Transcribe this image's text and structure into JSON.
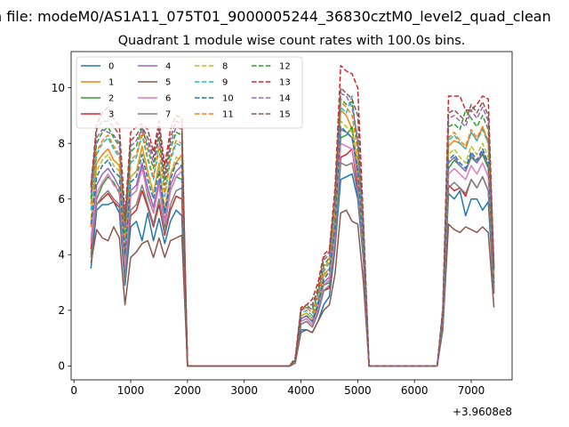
{
  "chart_data": {
    "type": "line",
    "suptitle": "n file: modeM0/AS1A11_075T01_9000005244_36830cztM0_level2_quad_clean",
    "title": "Quadrant 1 module wise count rates with 100.0s bins.",
    "xlabel": "",
    "ylabel": "",
    "x_offset_label": "+3.9608e8",
    "xlim": [
      -50,
      7720
    ],
    "ylim": [
      -0.5,
      11.3
    ],
    "xticks": [
      0,
      1000,
      2000,
      3000,
      4000,
      5000,
      6000,
      7000
    ],
    "yticks": [
      0,
      2,
      4,
      6,
      8,
      10
    ],
    "grid": false,
    "legend_position": "top-left",
    "x": [
      300,
      400,
      500,
      600,
      700,
      800,
      900,
      1000,
      1100,
      1200,
      1300,
      1400,
      1500,
      1600,
      1700,
      1800,
      1900,
      2000,
      2100,
      2200,
      2300,
      2400,
      2500,
      2600,
      2700,
      2800,
      2900,
      3000,
      3100,
      3200,
      3300,
      3400,
      3500,
      3600,
      3700,
      3800,
      3900,
      4000,
      4100,
      4200,
      4300,
      4400,
      4500,
      4600,
      4700,
      4800,
      4900,
      5000,
      5100,
      5200,
      5300,
      5400,
      5500,
      5600,
      5700,
      5800,
      5900,
      6000,
      6100,
      6200,
      6300,
      6400,
      6500,
      6600,
      6700,
      6800,
      6900,
      7000,
      7100,
      7200,
      7300,
      7400
    ],
    "series": [
      {
        "name": "0",
        "color": "#1f77b4",
        "dash": "solid",
        "values": [
          3.5,
          5.6,
          5.8,
          5.8,
          5.9,
          5.5,
          2.9,
          5.0,
          5.2,
          4.5,
          5.5,
          4.5,
          5.3,
          4.4,
          5.2,
          5.6,
          5.4,
          0,
          0,
          0,
          0,
          0,
          0,
          0,
          0,
          0,
          0,
          0,
          0,
          0,
          0,
          0,
          0,
          0,
          0,
          0,
          0.1,
          1.3,
          1.3,
          1.2,
          1.6,
          2.2,
          2.5,
          4.2,
          6.7,
          6.8,
          6.9,
          6.0,
          3.8,
          0,
          0,
          0,
          0,
          0,
          0,
          0,
          0,
          0,
          0,
          0,
          0,
          0,
          1.5,
          6.2,
          6.0,
          6.3,
          5.4,
          6.0,
          6.0,
          5.6,
          5.9,
          2.6
        ]
      },
      {
        "name": "1",
        "color": "#ff7f0e",
        "dash": "solid",
        "values": [
          5.0,
          7.3,
          7.6,
          7.8,
          7.4,
          7.2,
          3.8,
          6.8,
          7.0,
          7.9,
          7.0,
          6.2,
          7.3,
          5.5,
          6.9,
          7.3,
          7.6,
          0,
          0,
          0,
          0,
          0,
          0,
          0,
          0,
          0,
          0,
          0,
          0,
          0,
          0,
          0,
          0,
          0,
          0,
          0,
          0.2,
          1.8,
          1.9,
          1.7,
          2.3,
          3.3,
          3.5,
          5.2,
          9.2,
          9.0,
          8.5,
          7.3,
          4.5,
          0,
          0,
          0,
          0,
          0,
          0,
          0,
          0,
          0,
          0,
          0,
          0,
          0,
          1.8,
          7.9,
          8.1,
          8.0,
          7.8,
          8.4,
          8.1,
          8.6,
          8.0,
          3.2
        ]
      },
      {
        "name": "2",
        "color": "#2ca02c",
        "dash": "solid",
        "values": [
          4.0,
          6.0,
          6.5,
          6.8,
          6.6,
          6.2,
          3.3,
          6.1,
          6.3,
          7.2,
          6.1,
          5.5,
          6.5,
          5.0,
          6.3,
          6.8,
          6.7,
          0,
          0,
          0,
          0,
          0,
          0,
          0,
          0,
          0,
          0,
          0,
          0,
          0,
          0,
          0,
          0,
          0,
          0,
          0,
          0.1,
          1.6,
          1.7,
          1.5,
          2.0,
          2.9,
          3.0,
          4.6,
          8.2,
          8.3,
          8.6,
          6.9,
          4.2,
          0,
          0,
          0,
          0,
          0,
          0,
          0,
          0,
          0,
          0,
          0,
          0,
          0,
          1.6,
          7.1,
          7.4,
          7.2,
          7.0,
          7.5,
          7.3,
          7.6,
          7.1,
          2.8
        ]
      },
      {
        "name": "3",
        "color": "#d62728",
        "dash": "solid",
        "values": [
          4.2,
          5.8,
          6.0,
          6.2,
          5.9,
          5.7,
          3.2,
          5.4,
          5.6,
          6.3,
          5.7,
          5.0,
          5.8,
          4.7,
          5.6,
          6.1,
          6.0,
          0,
          0,
          0,
          0,
          0,
          0,
          0,
          0,
          0,
          0,
          0,
          0,
          0,
          0,
          0,
          0,
          0,
          0,
          0,
          0.1,
          1.5,
          1.6,
          1.4,
          1.9,
          2.7,
          2.8,
          4.3,
          7.5,
          7.6,
          7.8,
          6.4,
          3.9,
          0,
          0,
          0,
          0,
          0,
          0,
          0,
          0,
          0,
          0,
          0,
          0,
          0,
          1.6,
          6.5,
          6.3,
          6.4,
          6.1,
          6.7,
          6.4,
          6.8,
          6.3,
          2.7
        ]
      },
      {
        "name": "4",
        "color": "#9467bd",
        "dash": "solid",
        "values": [
          4.5,
          6.5,
          6.9,
          7.1,
          6.8,
          6.4,
          3.6,
          6.3,
          6.5,
          7.3,
          6.4,
          5.7,
          6.7,
          5.2,
          6.5,
          7.0,
          7.2,
          0,
          0,
          0,
          0,
          0,
          0,
          0,
          0,
          0,
          0,
          0,
          0,
          0,
          0,
          0,
          0,
          0,
          0,
          0,
          0.2,
          1.7,
          1.8,
          1.6,
          2.1,
          3.0,
          3.2,
          4.8,
          8.5,
          8.4,
          8.2,
          7.0,
          4.3,
          0,
          0,
          0,
          0,
          0,
          0,
          0,
          0,
          0,
          0,
          0,
          0,
          0,
          1.7,
          7.3,
          7.5,
          7.2,
          7.0,
          7.6,
          7.3,
          7.7,
          7.2,
          3.0
        ]
      },
      {
        "name": "5",
        "color": "#8c564b",
        "dash": "solid",
        "values": [
          3.7,
          4.9,
          4.6,
          4.5,
          5.0,
          4.6,
          2.2,
          3.9,
          4.1,
          4.4,
          4.5,
          3.9,
          4.6,
          3.9,
          4.5,
          4.6,
          4.7,
          0,
          0,
          0,
          0,
          0,
          0,
          0,
          0,
          0,
          0,
          0,
          0,
          0,
          0,
          0,
          0,
          0,
          0,
          0,
          0.1,
          1.2,
          1.3,
          1.2,
          1.6,
          2.0,
          2.2,
          3.3,
          5.5,
          5.6,
          5.2,
          5.1,
          3.0,
          0,
          0,
          0,
          0,
          0,
          0,
          0,
          0,
          0,
          0,
          0,
          0,
          0,
          1.3,
          5.1,
          4.9,
          4.8,
          5.0,
          4.9,
          4.8,
          5.0,
          4.8,
          2.1
        ]
      },
      {
        "name": "6",
        "color": "#e377c2",
        "dash": "solid",
        "values": [
          4.4,
          6.2,
          6.6,
          6.9,
          6.5,
          6.3,
          3.5,
          6.1,
          6.3,
          7.1,
          6.2,
          5.5,
          6.5,
          5.1,
          6.3,
          6.8,
          7.0,
          0,
          0,
          0,
          0,
          0,
          0,
          0,
          0,
          0,
          0,
          0,
          0,
          0,
          0,
          0,
          0,
          0,
          0,
          0,
          0.1,
          1.6,
          1.7,
          1.5,
          2.0,
          2.9,
          3.1,
          4.6,
          8.0,
          7.9,
          7.8,
          6.7,
          4.2,
          0,
          0,
          0,
          0,
          0,
          0,
          0,
          0,
          0,
          0,
          0,
          0,
          0,
          1.6,
          6.9,
          7.1,
          6.9,
          6.7,
          7.2,
          6.9,
          7.3,
          6.8,
          2.9
        ]
      },
      {
        "name": "7",
        "color": "#7f7f7f",
        "dash": "solid",
        "values": [
          3.9,
          5.8,
          6.1,
          6.3,
          6.0,
          5.8,
          3.1,
          5.6,
          5.8,
          6.5,
          5.8,
          5.1,
          6.0,
          4.8,
          5.8,
          6.3,
          6.4,
          0,
          0,
          0,
          0,
          0,
          0,
          0,
          0,
          0,
          0,
          0,
          0,
          0,
          0,
          0,
          0,
          0,
          0,
          0,
          0.1,
          1.5,
          1.6,
          1.4,
          1.9,
          2.7,
          2.9,
          4.3,
          7.3,
          7.2,
          7.3,
          6.2,
          3.9,
          0,
          0,
          0,
          0,
          0,
          0,
          0,
          0,
          0,
          0,
          0,
          0,
          0,
          1.5,
          6.4,
          6.6,
          6.4,
          6.2,
          6.7,
          6.4,
          6.8,
          6.3,
          2.7
        ]
      },
      {
        "name": "8",
        "color": "#bcbd22",
        "dash": "dashed",
        "values": [
          5.3,
          7.0,
          7.4,
          7.6,
          7.2,
          7.0,
          4.2,
          6.8,
          7.0,
          7.8,
          6.9,
          6.2,
          7.2,
          5.7,
          6.9,
          7.5,
          7.4,
          0,
          0,
          0,
          0,
          0,
          0,
          0,
          0,
          0,
          0,
          0,
          0,
          0,
          0,
          0,
          0,
          0,
          0,
          0,
          0.2,
          1.8,
          1.9,
          1.7,
          2.3,
          3.2,
          3.5,
          5.1,
          8.8,
          8.6,
          8.4,
          7.2,
          4.5,
          0,
          0,
          0,
          0,
          0,
          0,
          0,
          0,
          0,
          0,
          0,
          0,
          0,
          1.8,
          7.6,
          7.8,
          7.5,
          7.3,
          7.9,
          7.6,
          8.0,
          7.5,
          3.1
        ]
      },
      {
        "name": "9",
        "color": "#17becf",
        "dash": "dashed",
        "values": [
          5.6,
          7.6,
          8.0,
          8.2,
          7.8,
          7.5,
          4.5,
          7.3,
          7.5,
          8.3,
          7.4,
          6.7,
          7.8,
          6.1,
          7.4,
          8.0,
          7.9,
          0,
          0,
          0,
          0,
          0,
          0,
          0,
          0,
          0,
          0,
          0,
          0,
          0,
          0,
          0,
          0,
          0,
          0,
          0,
          0.2,
          1.9,
          2.0,
          1.8,
          2.4,
          3.4,
          3.7,
          5.4,
          9.3,
          9.1,
          9.7,
          7.6,
          4.7,
          0,
          0,
          0,
          0,
          0,
          0,
          0,
          0,
          0,
          0,
          0,
          0,
          0,
          1.9,
          8.1,
          8.3,
          8.0,
          7.8,
          8.4,
          8.1,
          8.5,
          8.0,
          3.3
        ]
      },
      {
        "name": "10",
        "color": "#1f77b4",
        "dash": "dashed",
        "values": [
          5.1,
          6.8,
          7.2,
          7.4,
          7.0,
          6.8,
          4.0,
          6.6,
          6.8,
          7.6,
          6.7,
          6.0,
          7.0,
          5.5,
          6.7,
          7.3,
          7.2,
          0,
          0,
          0,
          0,
          0,
          0,
          0,
          0,
          0,
          0,
          0,
          0,
          0,
          0,
          0,
          0,
          0,
          0,
          0,
          0.2,
          1.7,
          1.8,
          1.6,
          2.2,
          3.1,
          3.4,
          5.0,
          8.6,
          8.4,
          8.2,
          7.0,
          4.4,
          0,
          0,
          0,
          0,
          0,
          0,
          0,
          0,
          0,
          0,
          0,
          0,
          0,
          1.7,
          7.4,
          7.6,
          7.3,
          7.1,
          7.7,
          7.4,
          7.8,
          7.3,
          3.0
        ]
      },
      {
        "name": "11",
        "color": "#ff7f0e",
        "dash": "dashed",
        "values": [
          5.8,
          7.7,
          8.1,
          8.3,
          7.9,
          7.6,
          4.6,
          7.4,
          7.6,
          8.4,
          7.5,
          6.8,
          7.9,
          6.2,
          7.5,
          8.1,
          8.0,
          0,
          0,
          0,
          0,
          0,
          0,
          0,
          0,
          0,
          0,
          0,
          0,
          0,
          0,
          0,
          0,
          0,
          0,
          0,
          0.2,
          2.0,
          2.1,
          1.9,
          2.5,
          3.5,
          3.8,
          5.5,
          9.5,
          9.3,
          9.0,
          7.7,
          4.8,
          0,
          0,
          0,
          0,
          0,
          0,
          0,
          0,
          0,
          0,
          0,
          0,
          0,
          1.9,
          8.2,
          8.4,
          8.1,
          7.9,
          8.5,
          8.2,
          8.6,
          8.1,
          3.3
        ]
      },
      {
        "name": "12",
        "color": "#2ca02c",
        "dash": "dashed",
        "values": [
          6.0,
          8.0,
          8.4,
          8.6,
          8.2,
          7.9,
          4.8,
          7.7,
          7.9,
          8.6,
          7.8,
          7.1,
          8.2,
          6.5,
          7.8,
          8.4,
          8.3,
          0,
          0,
          0,
          0,
          0,
          0,
          0,
          0,
          0,
          0,
          0,
          0,
          0,
          0,
          0,
          0,
          0,
          0,
          0,
          0.2,
          2.0,
          2.2,
          2.0,
          2.6,
          3.6,
          3.9,
          5.7,
          9.6,
          9.4,
          9.5,
          8.0,
          4.9,
          0,
          0,
          0,
          0,
          0,
          0,
          0,
          0,
          0,
          0,
          0,
          0,
          0,
          2.0,
          8.6,
          8.7,
          8.5,
          9.2,
          8.9,
          8.6,
          9.0,
          8.5,
          3.4
        ]
      },
      {
        "name": "13",
        "color": "#d62728",
        "dash": "dashed",
        "values": [
          6.5,
          8.7,
          9.1,
          9.3,
          8.9,
          8.6,
          5.4,
          8.4,
          8.6,
          8.7,
          8.5,
          7.7,
          8.8,
          7.2,
          8.5,
          9.0,
          8.9,
          0,
          0,
          0,
          0,
          0,
          0,
          0,
          0,
          0,
          0,
          0,
          0,
          0,
          0,
          0,
          0,
          0,
          0,
          0,
          0.3,
          2.1,
          2.2,
          2.4,
          3.0,
          4.0,
          4.2,
          6.4,
          10.8,
          10.6,
          10.5,
          10.0,
          5.2,
          0,
          0,
          0,
          0,
          0,
          0,
          0,
          0,
          0,
          0,
          0,
          0,
          0,
          2.1,
          9.7,
          9.7,
          9.7,
          9.2,
          9.2,
          9.4,
          9.7,
          9.6,
          3.6
        ]
      },
      {
        "name": "14",
        "color": "#9467bd",
        "dash": "dashed",
        "values": [
          6.2,
          8.2,
          8.5,
          8.4,
          8.3,
          8.0,
          5.0,
          7.9,
          8.1,
          8.5,
          8.0,
          7.3,
          8.4,
          6.7,
          8.0,
          8.6,
          8.5,
          0,
          0,
          0,
          0,
          0,
          0,
          0,
          0,
          0,
          0,
          0,
          0,
          0,
          0,
          0,
          0,
          0,
          0,
          0,
          0.2,
          2.0,
          2.1,
          2.1,
          2.7,
          3.8,
          4.0,
          5.9,
          9.8,
          9.7,
          9.3,
          8.2,
          5.0,
          0,
          0,
          0,
          0,
          0,
          0,
          0,
          0,
          0,
          0,
          0,
          0,
          0,
          2.0,
          8.9,
          9.0,
          8.8,
          8.6,
          9.2,
          8.9,
          9.3,
          8.8,
          3.5
        ]
      },
      {
        "name": "15",
        "color": "#8c564b",
        "dash": "dashed",
        "values": [
          6.4,
          8.5,
          8.8,
          8.8,
          8.6,
          8.3,
          5.2,
          8.1,
          8.3,
          8.6,
          8.2,
          7.5,
          8.6,
          6.9,
          8.2,
          8.8,
          8.7,
          0,
          0,
          0,
          0,
          0,
          0,
          0,
          0,
          0,
          0,
          0,
          0,
          0,
          0,
          0,
          0,
          0,
          0,
          0,
          0.2,
          2.0,
          2.2,
          2.2,
          2.8,
          3.9,
          4.1,
          6.1,
          10.0,
          9.8,
          9.6,
          9.0,
          5.1,
          0,
          0,
          0,
          0,
          0,
          0,
          0,
          0,
          0,
          0,
          0,
          0,
          0,
          2.0,
          9.1,
          9.2,
          9.0,
          8.8,
          9.4,
          9.1,
          9.5,
          9.0,
          3.5
        ]
      }
    ]
  }
}
